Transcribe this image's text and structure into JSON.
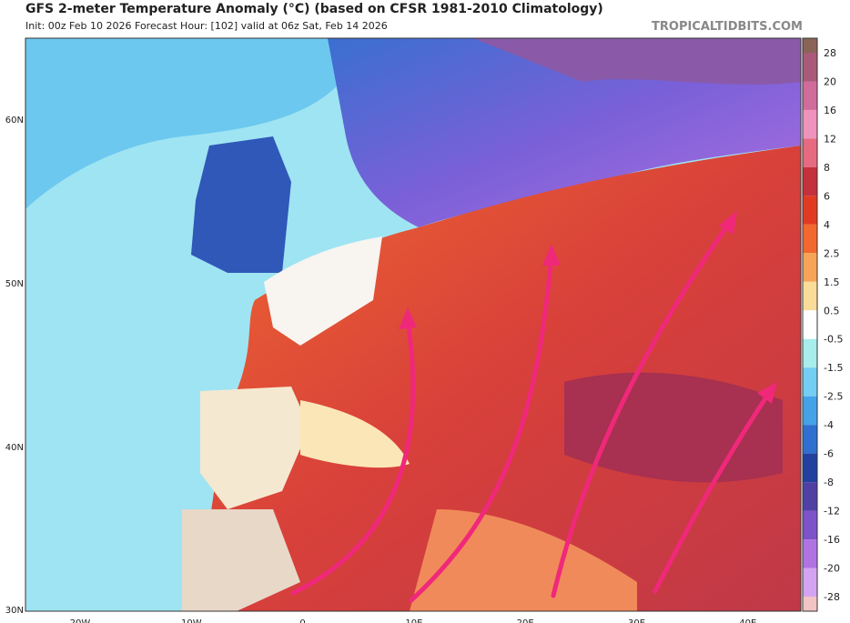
{
  "header": {
    "title": "GFS 2-meter Temperature Anomaly (°C) (based on CFSR 1981-2010 Climatology)",
    "subtitle": "Init: 00z Feb 10 2026   Forecast Hour: [102]   valid at 06z Sat, Feb 14 2026",
    "site": "TROPICALTIDBITS.COM"
  },
  "map": {
    "latitude_labels": [
      "60N",
      "50N",
      "40N",
      "30N"
    ],
    "longitude_labels": [
      "20W",
      "10W",
      "0",
      "10E",
      "20E",
      "30E",
      "40E"
    ]
  },
  "colorbar": {
    "labels": [
      28,
      20,
      16,
      12,
      8,
      6,
      4,
      2.5,
      1.5,
      0.5,
      -0.5,
      -1.5,
      -2.5,
      -4,
      -6,
      -8,
      -12,
      -16,
      -20,
      -28
    ],
    "colors": [
      "#8a6458",
      "#a85a78",
      "#cf6c9c",
      "#ee94bc",
      "#e66a80",
      "#c4303c",
      "#e23a22",
      "#f2682e",
      "#f6a458",
      "#f8dc98",
      "#ffffff",
      "#a8ecec",
      "#74cdf2",
      "#44a2e8",
      "#2f6fcf",
      "#22409e",
      "#5040a4",
      "#7e52c8",
      "#b074e2",
      "#d4a4f2",
      "#f2c4c4"
    ]
  }
}
